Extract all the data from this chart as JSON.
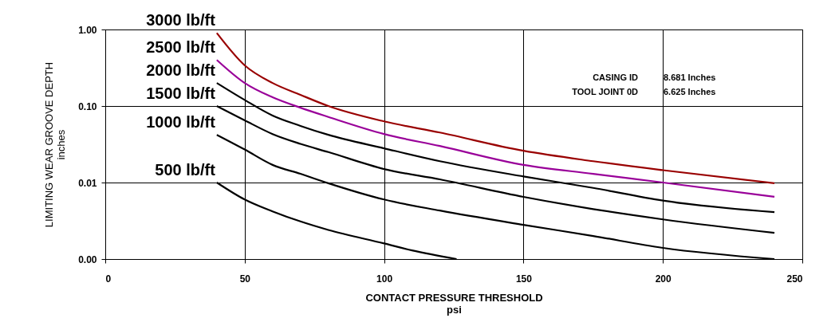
{
  "chart_data": {
    "type": "line",
    "xlabel": "CONTACT PRESSURE THRESHOLD\npsi",
    "ylabel": "LIMITING WEAR GROOVE DEPTH\ninches",
    "log": "y",
    "grid": true,
    "legend": false,
    "line_style": "solid",
    "marker": "none",
    "xlim": [
      0,
      250
    ],
    "xticks": [
      0,
      50,
      100,
      150,
      200,
      250
    ],
    "ylim": [
      0.001,
      1
    ],
    "yticks": [
      {
        "value": 0.001,
        "label": "0.00"
      },
      {
        "value": 0.01,
        "label": "0.01"
      },
      {
        "value": 0.1,
        "label": "0.10"
      },
      {
        "value": 1,
        "label": "1.00"
      }
    ],
    "annotations": [
      "CASING ID",
      "8.681 Inches",
      "TOOL JOINT 0D",
      "6.625 Inches"
    ],
    "series": [
      {
        "name": "3000 lb/ft",
        "color": "#990000",
        "x": [
          40,
          50,
          60,
          70,
          80,
          100,
          120,
          150,
          175,
          200,
          240
        ],
        "values": [
          0.9,
          0.34,
          0.2,
          0.14,
          0.1,
          0.063,
          0.045,
          0.026,
          0.019,
          0.0145,
          0.0098
        ]
      },
      {
        "name": "2500 lb/ft",
        "color": "#990099",
        "x": [
          40,
          50,
          60,
          70,
          80,
          100,
          120,
          150,
          175,
          200,
          240
        ],
        "values": [
          0.4,
          0.2,
          0.13,
          0.095,
          0.072,
          0.043,
          0.03,
          0.017,
          0.013,
          0.01,
          0.0065
        ]
      },
      {
        "name": "2000 lb/ft",
        "color": "#000000",
        "x": [
          40,
          50,
          60,
          70,
          80,
          100,
          120,
          150,
          175,
          200,
          240
        ],
        "values": [
          0.2,
          0.12,
          0.075,
          0.055,
          0.042,
          0.028,
          0.019,
          0.012,
          0.0085,
          0.0058,
          0.0041
        ]
      },
      {
        "name": "1500 lb/ft",
        "color": "#000000",
        "x": [
          40,
          50,
          60,
          70,
          80,
          100,
          120,
          150,
          175,
          200,
          240
        ],
        "values": [
          0.1,
          0.065,
          0.043,
          0.032,
          0.025,
          0.015,
          0.011,
          0.0065,
          0.0045,
          0.0033,
          0.0022
        ]
      },
      {
        "name": "1000 lb/ft",
        "color": "#000000",
        "x": [
          40,
          50,
          60,
          70,
          80,
          100,
          120,
          150,
          175,
          200,
          240
        ],
        "values": [
          0.042,
          0.027,
          0.017,
          0.013,
          0.0098,
          0.006,
          0.0043,
          0.0028,
          0.002,
          0.0014,
          0.001
        ]
      },
      {
        "name": "500 lb/ft",
        "color": "#000000",
        "x": [
          40,
          50,
          60,
          70,
          80,
          100,
          110,
          126
        ],
        "values": [
          0.01,
          0.006,
          0.0042,
          0.0031,
          0.0024,
          0.0016,
          0.0013,
          0.001
        ]
      }
    ]
  }
}
